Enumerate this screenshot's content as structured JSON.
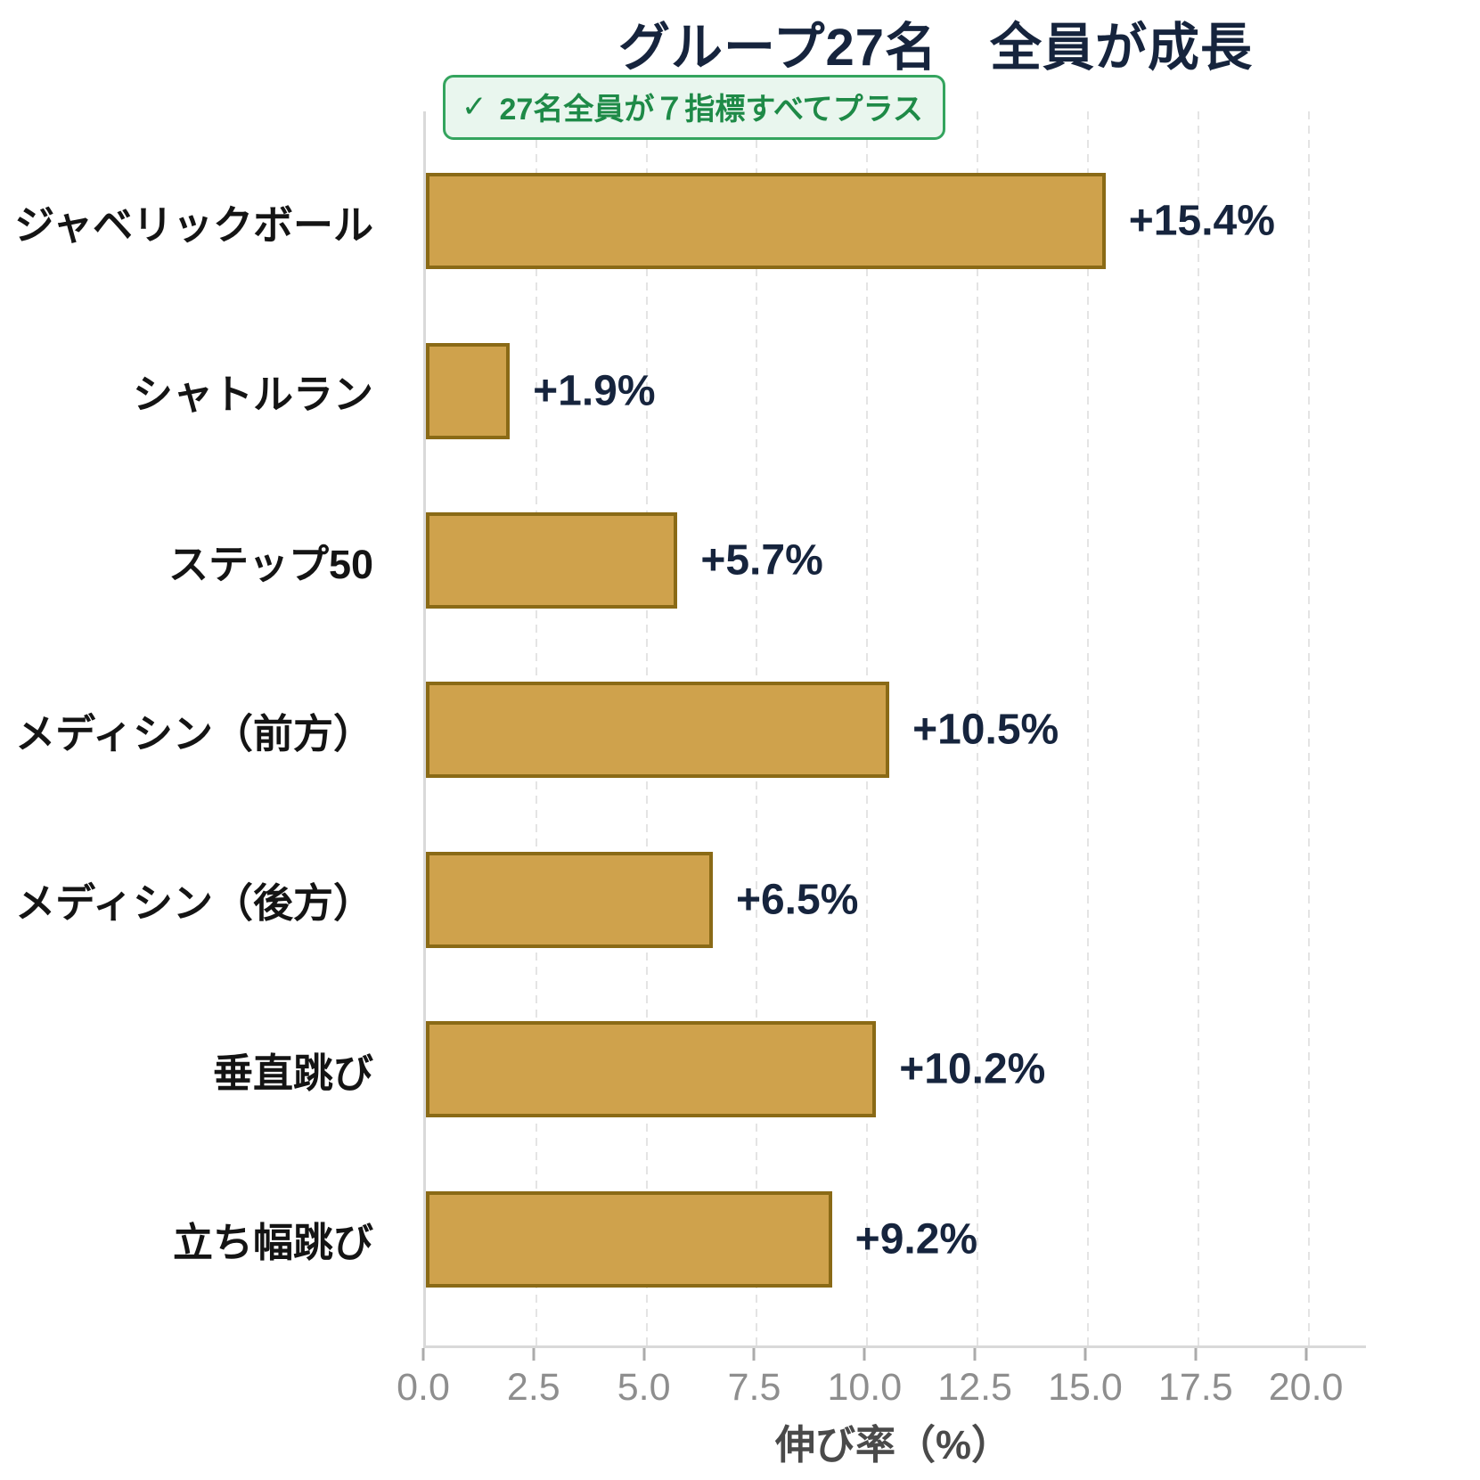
{
  "chart_data": {
    "type": "bar",
    "orientation": "horizontal",
    "title": "グループ27名　全員が成長",
    "annotation": {
      "icon": "✓",
      "text": "27名全員が７指標すべてプラス"
    },
    "categories": [
      "ジャベリックボール",
      "シャトルラン",
      "ステップ50",
      "メディシン（前方）",
      "メディシン（後方）",
      "垂直跳び",
      "立ち幅跳び"
    ],
    "values": [
      15.4,
      1.9,
      5.7,
      10.5,
      6.5,
      10.2,
      9.2
    ],
    "value_labels": [
      "+15.4%",
      "+1.9%",
      "+5.7%",
      "+10.5%",
      "+6.5%",
      "+10.2%",
      "+9.2%"
    ],
    "xlabel": "伸び率（%）",
    "ylabel": "",
    "xlim": [
      0,
      21.3
    ],
    "xticks": [
      0.0,
      2.5,
      5.0,
      7.5,
      10.0,
      12.5,
      15.0,
      17.5,
      20.0
    ],
    "xtick_labels": [
      "0.0",
      "2.5",
      "5.0",
      "7.5",
      "10.0",
      "12.5",
      "15.0",
      "17.5",
      "20.0"
    ],
    "grid": "vertical-dashed",
    "legend": "none",
    "colors": {
      "bar_fill": "#CFA24C",
      "bar_edge": "#8A6A16",
      "value_label": "#16243D",
      "title": "#16243D",
      "category_label": "#141414",
      "grid": "#E4E4E4",
      "spine": "#D9D9D9",
      "tick_mark": "#ABABAB",
      "tick_label": "#8E8E8E",
      "axis_title": "#4A4A4A",
      "badge_text": "#1E8A47",
      "badge_border": "#34A45E",
      "badge_bg": "#E9F6EE"
    }
  }
}
